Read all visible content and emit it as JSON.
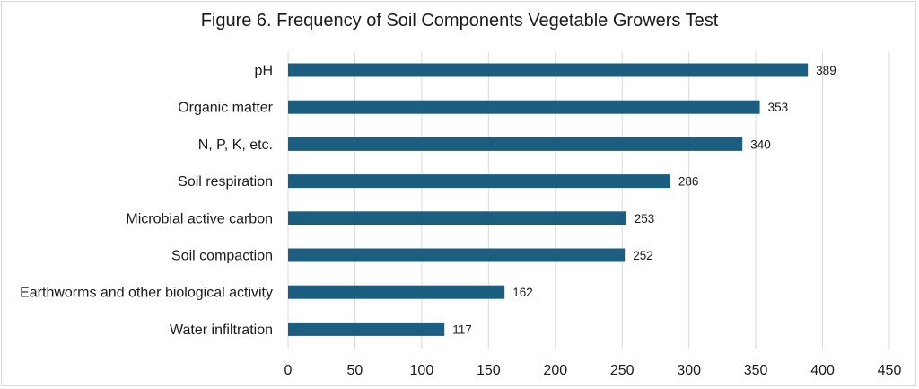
{
  "chart_data": {
    "type": "bar",
    "orientation": "horizontal",
    "title": "Figure 6. Frequency of Soil Components Vegetable Growers Test",
    "xlabel": "",
    "ylabel": "",
    "categories": [
      "pH",
      "Organic matter",
      "N, P, K, etc.",
      "Soil respiration",
      "Microbial active carbon",
      "Soil compaction",
      "Earthworms and other biological activity",
      "Water infiltration"
    ],
    "values": [
      389,
      353,
      340,
      286,
      253,
      252,
      162,
      117
    ],
    "xlim": [
      0,
      450
    ],
    "x_ticks": [
      0,
      50,
      100,
      150,
      200,
      250,
      300,
      350,
      400,
      450
    ],
    "grid": "vertical",
    "data_labels": true,
    "legend": "none",
    "bar_color": "#1b5e80",
    "grid_color": "#d9d9d9"
  }
}
